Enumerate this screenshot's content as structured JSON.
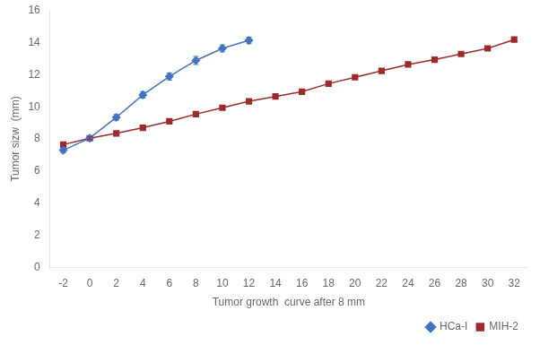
{
  "chart_data": {
    "type": "line",
    "xlabel": "Tumor growth  curve after 8 mm",
    "ylabel": "Tumor sizw  (mm)",
    "xlim": [
      -3,
      33
    ],
    "xticks": [
      -2,
      0,
      2,
      4,
      6,
      8,
      10,
      12,
      14,
      16,
      18,
      20,
      22,
      24,
      26,
      28,
      30,
      32
    ],
    "ylim": [
      0,
      16
    ],
    "yticks": [
      0,
      2,
      4,
      6,
      8,
      10,
      12,
      14,
      16
    ],
    "grid": false,
    "legend": "lower right",
    "series": [
      {
        "name": "HCa-I",
        "color": "#4472C4",
        "marker": "diamond",
        "x": [
          -2,
          0,
          2,
          4,
          6,
          8,
          10,
          12
        ],
        "values": [
          7.3,
          8.05,
          9.35,
          10.75,
          11.9,
          12.9,
          13.65,
          14.15
        ],
        "errors": [
          0.15,
          0.15,
          0.18,
          0.2,
          0.22,
          0.25,
          0.22,
          0.2
        ]
      },
      {
        "name": "MIH-2",
        "color": "#9E2A2B",
        "marker": "square",
        "x": [
          -2,
          0,
          2,
          4,
          6,
          8,
          10,
          12,
          14,
          16,
          18,
          20,
          22,
          24,
          26,
          28,
          30,
          32
        ],
        "values": [
          7.65,
          8.05,
          8.35,
          8.7,
          9.1,
          9.55,
          9.95,
          10.35,
          10.65,
          10.95,
          11.45,
          11.85,
          12.25,
          12.65,
          12.95,
          13.3,
          13.65,
          14.2
        ],
        "errors": [
          0.08,
          0.08,
          0.08,
          0.08,
          0.08,
          0.08,
          0.08,
          0.08,
          0.08,
          0.08,
          0.08,
          0.08,
          0.08,
          0.08,
          0.08,
          0.08,
          0.08,
          0.08
        ]
      }
    ]
  }
}
